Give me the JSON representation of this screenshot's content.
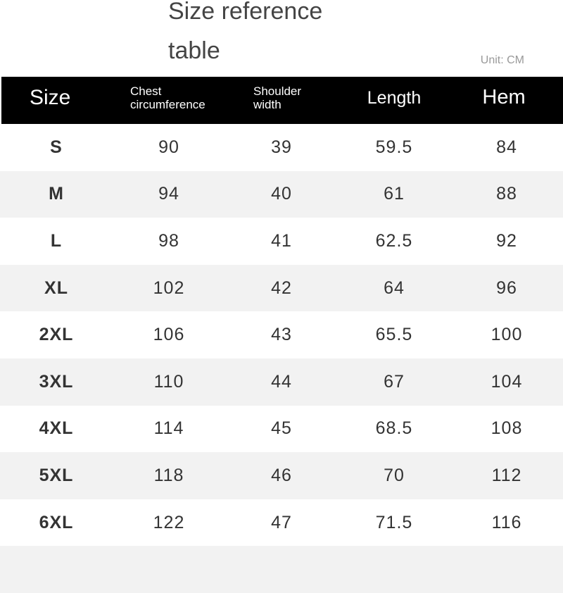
{
  "title": {
    "line1": "Size reference",
    "line2": "table"
  },
  "unit": "Unit: CM",
  "headers": {
    "size": "Size",
    "chest": [
      "Chest",
      "circumference"
    ],
    "shoulder": [
      "Shoulder",
      "width"
    ],
    "length": "Length",
    "hem": "Hem"
  },
  "rows": [
    [
      "S",
      "90",
      "39",
      "59.5",
      "84"
    ],
    [
      "M",
      "94",
      "40",
      "61",
      "88"
    ],
    [
      "L",
      "98",
      "41",
      "62.5",
      "92"
    ],
    [
      "XL",
      "102",
      "42",
      "64",
      "96"
    ],
    [
      "2XL",
      "106",
      "43",
      "65.5",
      "100"
    ],
    [
      "3XL",
      "110",
      "44",
      "67",
      "104"
    ],
    [
      "4XL",
      "114",
      "45",
      "68.5",
      "108"
    ],
    [
      "5XL",
      "118",
      "46",
      "70",
      "112"
    ],
    [
      "6XL",
      "122",
      "47",
      "71.5",
      "116"
    ],
    [
      "",
      "",
      "",
      "",
      ""
    ]
  ],
  "colors": {
    "header_bg": "#000000",
    "stripe": "#f2f2f2",
    "text": "#333333"
  }
}
